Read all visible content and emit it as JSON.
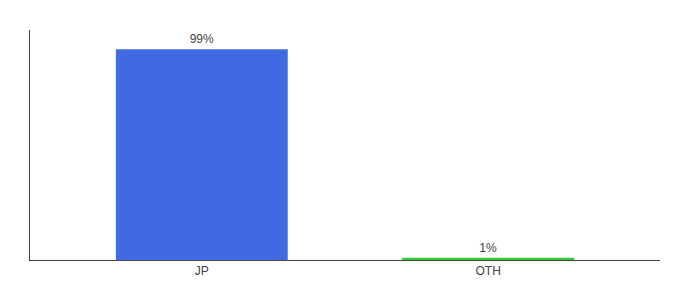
{
  "chart_data": {
    "type": "bar",
    "categories": [
      "JP",
      "OTH"
    ],
    "values": [
      99,
      1
    ],
    "value_labels": [
      "99%",
      "1%"
    ],
    "colors": [
      "#4169e1",
      "#33cc33"
    ],
    "ylim": [
      0,
      108
    ],
    "yticks": [],
    "grid": false,
    "data_labels": true,
    "tick_labels": "x"
  }
}
